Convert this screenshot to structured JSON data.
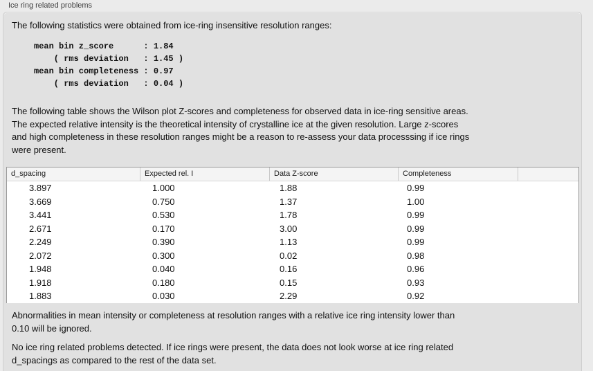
{
  "panel": {
    "title": "Ice ring related problems"
  },
  "intro": "The following statistics were obtained from ice-ring insensitive resolution ranges:",
  "stats": {
    "lines": [
      "mean bin z_score      : 1.84",
      "    ( rms deviation   : 1.45 )",
      "mean bin completeness : 0.97",
      "    ( rms deviation   : 0.04 )"
    ]
  },
  "description": {
    "lines": [
      "The following table shows the Wilson plot Z-scores and completeness for observed data in ice-ring sensitive areas.",
      "The expected relative intensity is the theoretical intensity of crystalline ice at the given resolution. Large z-scores",
      "and high completeness in these resolution ranges might be a reason to re-assess your data processsing if ice rings",
      "were present."
    ]
  },
  "table": {
    "columns": [
      "d_spacing",
      "Expected rel. I",
      "Data Z-score",
      "Completeness"
    ],
    "rows": [
      [
        "3.897",
        "1.000",
        "1.88",
        "0.99"
      ],
      [
        "3.669",
        "0.750",
        "1.37",
        "1.00"
      ],
      [
        "3.441",
        "0.530",
        "1.78",
        "0.99"
      ],
      [
        "2.671",
        "0.170",
        "3.00",
        "0.99"
      ],
      [
        "2.249",
        "0.390",
        "1.13",
        "0.99"
      ],
      [
        "2.072",
        "0.300",
        "0.02",
        "0.98"
      ],
      [
        "1.948",
        "0.040",
        "0.16",
        "0.96"
      ],
      [
        "1.918",
        "0.180",
        "0.15",
        "0.93"
      ],
      [
        "1.883",
        "0.030",
        "2.29",
        "0.92"
      ]
    ]
  },
  "ignore_note": {
    "lines": [
      "Abnormalities in mean intensity or completeness at resolution ranges with a relative ice ring intensity lower than",
      "0.10 will be ignored."
    ]
  },
  "conclusion_note": {
    "lines": [
      "No ice ring related problems detected. If ice rings were present, the data does not look worse at ice ring related",
      "d_spacings as compared to the rest of the data set."
    ]
  },
  "colors": {
    "outer_background": "#ebebeb",
    "panel_background": "#e1e1e1",
    "table_background": "#ffffff",
    "table_border": "#9a9a9a",
    "header_background": "#f4f4f4",
    "header_separator": "#c9c9c9",
    "body_text": "#101010",
    "title_text": "#3e3e3e"
  }
}
